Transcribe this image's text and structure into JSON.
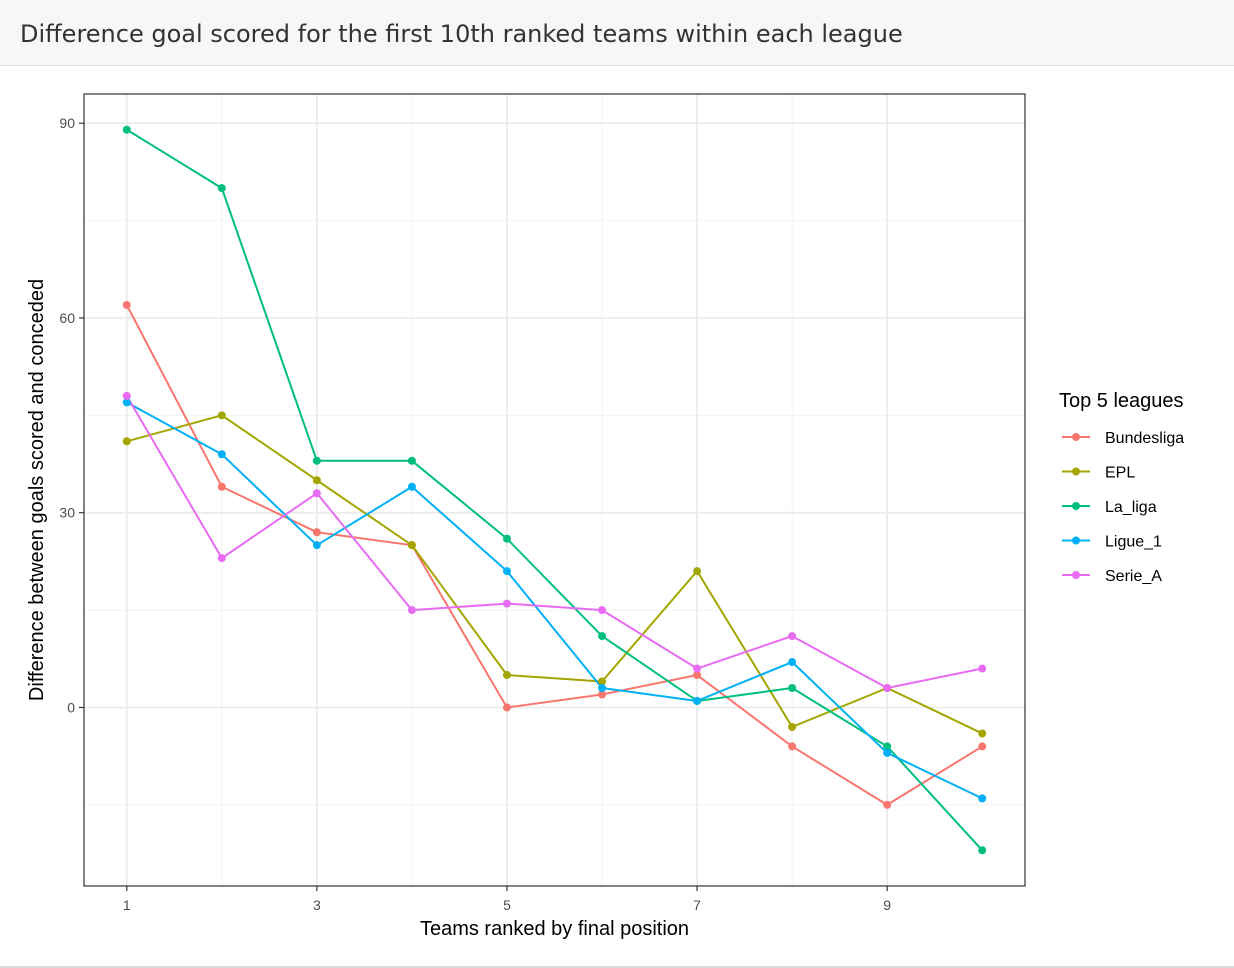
{
  "header": {
    "title": "Difference goal scored for the first 10th ranked teams within each league"
  },
  "chart_data": {
    "type": "line",
    "title": "",
    "xlabel": "Teams ranked by final position",
    "ylabel": "Difference between goals scored and conceded",
    "x": [
      1,
      2,
      3,
      4,
      5,
      6,
      7,
      8,
      9,
      10
    ],
    "xticks": [
      1,
      3,
      5,
      7,
      9
    ],
    "yticks": [
      0,
      30,
      60,
      90
    ],
    "xlim": [
      0.55,
      10.45
    ],
    "ylim": [
      -27.5,
      94.5
    ],
    "grid": true,
    "legend": {
      "title": "Top 5 leagues",
      "placement": "right"
    },
    "series": [
      {
        "name": "Bundesliga",
        "color": "#F8766D",
        "values": [
          62,
          34,
          27,
          25,
          0,
          2,
          5,
          -6,
          -15,
          -6
        ]
      },
      {
        "name": "EPL",
        "color": "#A3A500",
        "values": [
          41,
          45,
          35,
          25,
          5,
          4,
          21,
          -3,
          3,
          -4
        ]
      },
      {
        "name": "La_liga",
        "color": "#00BF7D",
        "values": [
          89,
          80,
          38,
          38,
          26,
          11,
          1,
          3,
          -6,
          -22
        ]
      },
      {
        "name": "Ligue_1",
        "color": "#00B0F6",
        "values": [
          47,
          39,
          25,
          34,
          21,
          3,
          1,
          7,
          -7,
          -14
        ]
      },
      {
        "name": "Serie_A",
        "color": "#E76BF3",
        "values": [
          48,
          23,
          33,
          15,
          16,
          15,
          6,
          11,
          3,
          6
        ]
      }
    ]
  }
}
